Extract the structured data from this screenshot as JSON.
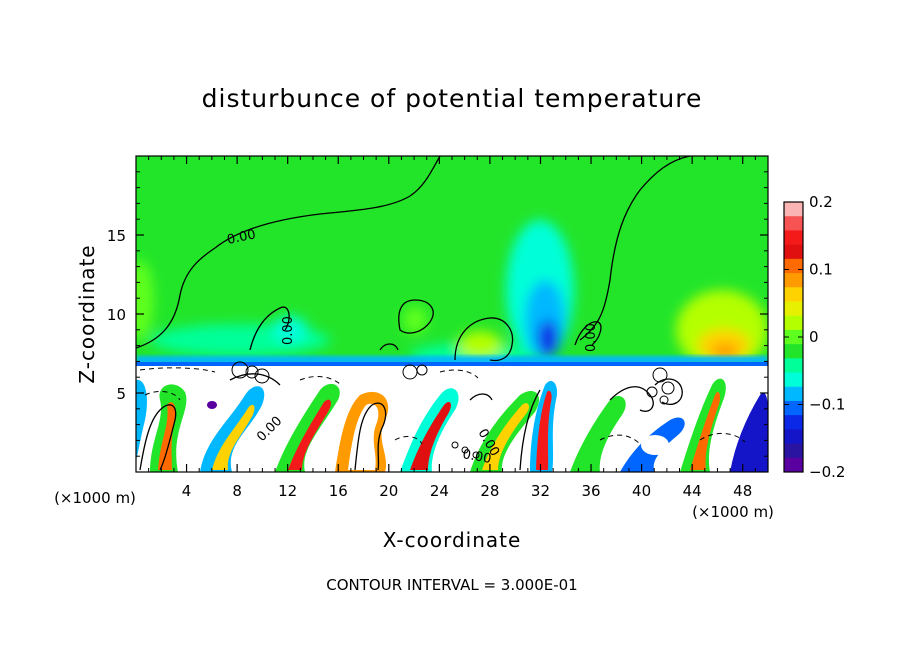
{
  "chart_data": {
    "type": "heatmap",
    "title": "disturbunce of potential temperature",
    "xlabel": "X-coordinate",
    "ylabel": "Z-coordinate",
    "x_unit": "(×1000 m)",
    "y_unit": "(×1000 m)",
    "xlim": [
      0,
      50
    ],
    "ylim": [
      0,
      20
    ],
    "x_ticks": [
      4,
      8,
      12,
      16,
      20,
      24,
      28,
      32,
      36,
      40,
      44,
      48
    ],
    "y_ticks": [
      5,
      10,
      15
    ],
    "colorbar": {
      "range": [
        -0.2,
        0.2
      ],
      "tick_values": [
        0.2,
        0.1,
        0,
        -0.1,
        -0.2
      ],
      "tick_labels": [
        "0.2",
        "0.1",
        "0",
        "−0.1",
        "−0.2"
      ],
      "colors": [
        "#fbb4b4",
        "#f75353",
        "#f51a1a",
        "#e01010",
        "#ff6a00",
        "#ff9a00",
        "#ffd200",
        "#e6f000",
        "#b4ff00",
        "#5eff1f",
        "#22e52a",
        "#00ff99",
        "#00ffd8",
        "#00b8ff",
        "#0066ff",
        "#0a28e6",
        "#1414c8",
        "#2814a0",
        "#5a00a0"
      ]
    },
    "contour_interval": "CONTOUR INTERVAL = 3.000E-01",
    "contour_labels": [
      "0.00",
      "0.00",
      "0.00",
      "0.00",
      "0.00",
      "0.00"
    ]
  }
}
